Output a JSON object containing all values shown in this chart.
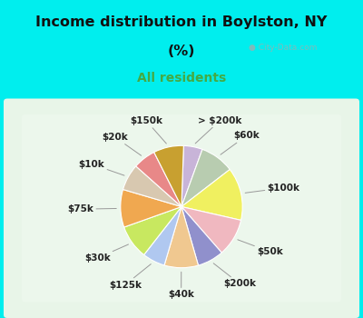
{
  "title_line1": "Income distribution in Boylston, NY",
  "title_line2": "(%)",
  "subtitle": "All residents",
  "title_color": "#111111",
  "subtitle_color": "#44aa44",
  "bg_cyan": "#00eeee",
  "bg_panel": "#d8f0e0",
  "watermark": "City-Data.com",
  "slices": [
    {
      "label": "> $200k",
      "value": 5,
      "color": "#c8b4d8"
    },
    {
      "label": "$60k",
      "value": 9,
      "color": "#b8ccb0"
    },
    {
      "label": "$100k",
      "value": 14,
      "color": "#f0f060"
    },
    {
      "label": "$50k",
      "value": 10,
      "color": "#f0b8c0"
    },
    {
      "label": "$200k",
      "value": 7,
      "color": "#9090cc"
    },
    {
      "label": "$40k",
      "value": 9,
      "color": "#f0c890"
    },
    {
      "label": "$125k",
      "value": 6,
      "color": "#b0c8f0"
    },
    {
      "label": "$30k",
      "value": 9,
      "color": "#c8e860"
    },
    {
      "label": "$75k",
      "value": 10,
      "color": "#f0a850"
    },
    {
      "label": "$10k",
      "value": 7,
      "color": "#d8c8b0"
    },
    {
      "label": "$20k",
      "value": 6,
      "color": "#e88888"
    },
    {
      "label": "$150k",
      "value": 8,
      "color": "#c8a030"
    }
  ],
  "label_fontsize": 7.5,
  "label_color": "#222222",
  "start_angle": 88,
  "title_fontsize": 11.5,
  "subtitle_fontsize": 10
}
